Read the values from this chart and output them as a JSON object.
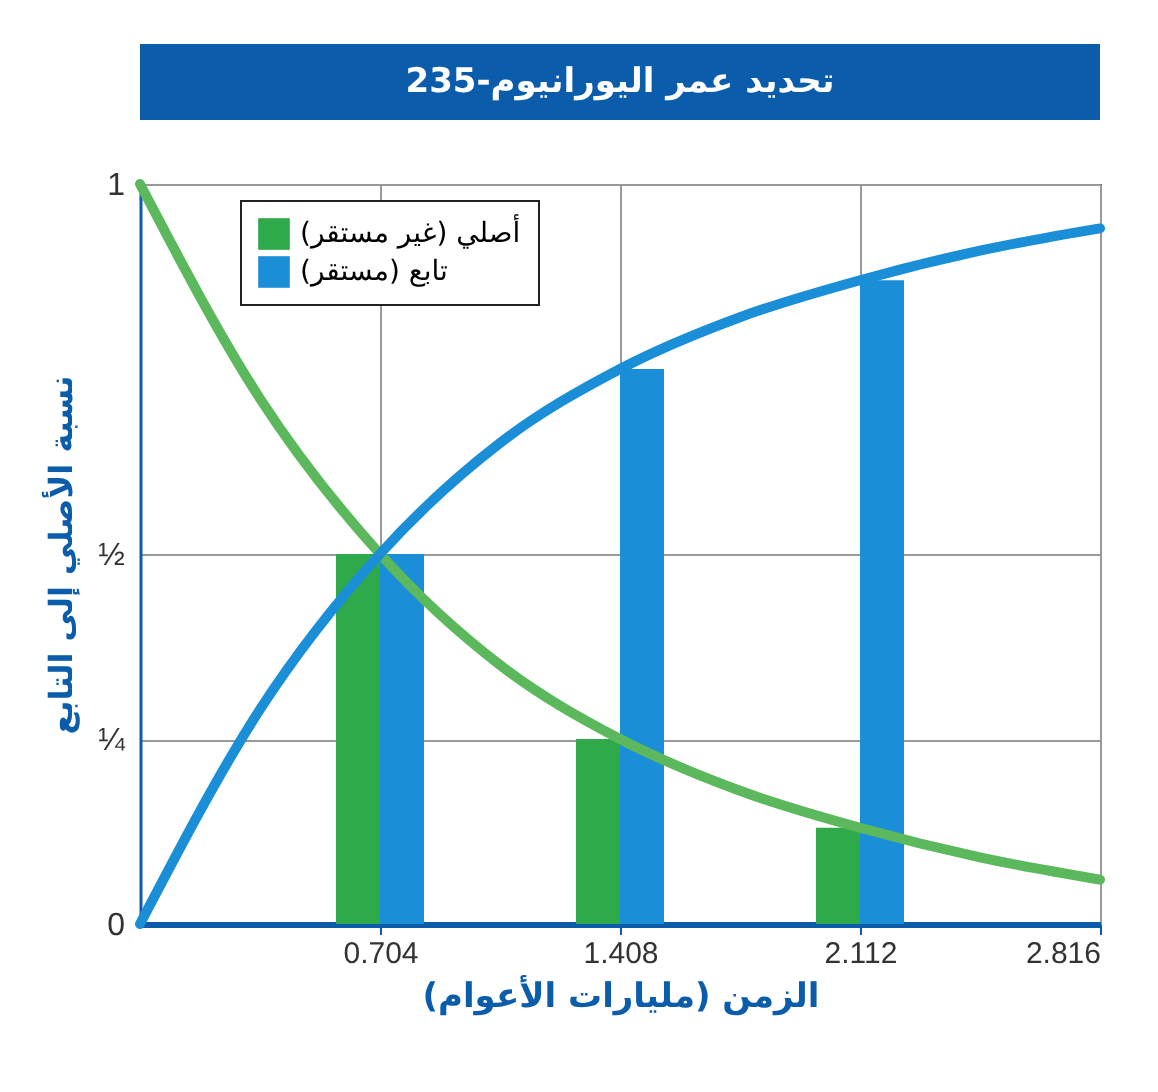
{
  "chart_data": {
    "type": "bar",
    "title": "تحديد عمر اليورانيوم-235",
    "xlabel": "الزمن (مليارات الأعوام)",
    "ylabel": "نسبة الأصلي إلى التابع",
    "x": [
      0.704,
      1.408,
      2.112
    ],
    "series": [
      {
        "name": "أصلي (غير مستقر)",
        "color": "#2eaa4a",
        "values": [
          0.5,
          0.25,
          0.13
        ]
      },
      {
        "name": "تابع (مستقر)",
        "color": "#1a8fd8",
        "values": [
          0.5,
          0.75,
          0.87
        ]
      },
      {
        "type": "line",
        "color": "#5cb85c",
        "x": [
          0,
          0.352,
          0.704,
          1.056,
          1.408,
          1.76,
          2.112,
          2.464,
          2.816
        ],
        "values": [
          1,
          0.71,
          0.5,
          0.35,
          0.25,
          0.18,
          0.13,
          0.09,
          0.06
        ]
      },
      {
        "type": "line",
        "color": "#1a8fd8",
        "x": [
          0,
          0.352,
          0.704,
          1.056,
          1.408,
          1.76,
          2.112,
          2.464,
          2.816
        ],
        "values": [
          0,
          0.29,
          0.5,
          0.65,
          0.75,
          0.82,
          0.87,
          0.91,
          0.94
        ]
      }
    ],
    "xlim": [
      0,
      2.816
    ],
    "ylim": [
      0,
      1
    ],
    "xticks": [
      0.704,
      1.408,
      2.112,
      2.816
    ],
    "yticks": [
      0,
      {
        "value": 0.25,
        "label": "¼"
      },
      {
        "value": 0.5,
        "label": "½"
      },
      1
    ],
    "grid": true,
    "legend": "top left",
    "line_style": "solid",
    "marker": "none"
  }
}
